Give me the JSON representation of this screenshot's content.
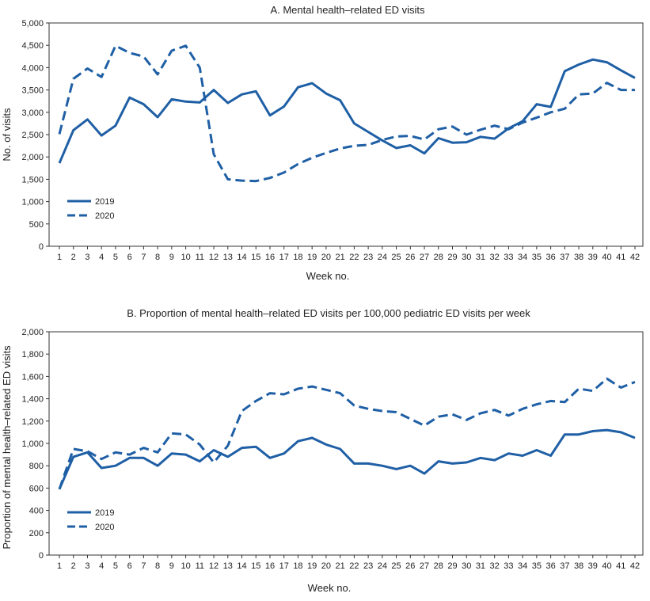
{
  "chart_data": [
    {
      "type": "line",
      "title": "A. Mental health–related ED visits",
      "xlabel": "Week no.",
      "ylabel": "No. of visits",
      "ylim": [
        0,
        5000
      ],
      "yticks": [
        0,
        500,
        1000,
        1500,
        2000,
        2500,
        3000,
        3500,
        4000,
        4500,
        5000
      ],
      "ytick_labels": [
        "0",
        "500",
        "1,000",
        "1,500",
        "2,000",
        "2,500",
        "3,000",
        "3,500",
        "4,000",
        "4,500",
        "5,000"
      ],
      "x": [
        1,
        2,
        3,
        4,
        5,
        6,
        7,
        8,
        9,
        10,
        11,
        12,
        13,
        14,
        15,
        16,
        17,
        18,
        19,
        20,
        21,
        22,
        23,
        24,
        25,
        26,
        27,
        28,
        29,
        30,
        31,
        32,
        33,
        34,
        35,
        36,
        37,
        38,
        39,
        40,
        41,
        42
      ],
      "xtick_labels": [
        "1",
        "2",
        "3",
        "4",
        "5",
        "6",
        "7",
        "8",
        "9",
        "10",
        "11",
        "12",
        "13",
        "14",
        "15",
        "16",
        "17",
        "18",
        "19",
        "20",
        "21",
        "22",
        "23",
        "24",
        "25",
        "26",
        "27",
        "28",
        "29",
        "30",
        "31",
        "32",
        "33",
        "34",
        "35",
        "36",
        "37",
        "38",
        "39",
        "40",
        "41",
        "42"
      ],
      "grid": false,
      "legend_position": "bottom-left",
      "series": [
        {
          "name": "2019",
          "style": "solid",
          "color": "#1f5fa5",
          "values": [
            1860,
            2600,
            2840,
            2480,
            2700,
            3330,
            3180,
            2890,
            3290,
            3240,
            3220,
            3500,
            3210,
            3400,
            3470,
            2930,
            3130,
            3560,
            3650,
            3420,
            3270,
            2750,
            2560,
            2370,
            2200,
            2260,
            2080,
            2420,
            2320,
            2330,
            2450,
            2410,
            2640,
            2800,
            3180,
            3120,
            3920,
            4070,
            4180,
            4120,
            3940,
            3770
          ]
        },
        {
          "name": "2020",
          "style": "dashed",
          "color": "#1f5fa5",
          "values": [
            2510,
            3750,
            3980,
            3790,
            4490,
            4330,
            4250,
            3850,
            4380,
            4490,
            4000,
            2060,
            1500,
            1470,
            1460,
            1530,
            1650,
            1840,
            1980,
            2090,
            2190,
            2250,
            2270,
            2380,
            2460,
            2470,
            2390,
            2620,
            2680,
            2500,
            2610,
            2700,
            2620,
            2770,
            2880,
            3000,
            3080,
            3400,
            3420,
            3660,
            3500,
            3500
          ]
        }
      ]
    },
    {
      "type": "line",
      "title": "B. Proportion of mental health–related ED visits per 100,000 pediatric ED visits per week",
      "xlabel": "Week no.",
      "ylabel": "Proportion of mental health–related ED visits",
      "ylim": [
        0,
        2000
      ],
      "yticks": [
        0,
        200,
        400,
        600,
        800,
        1000,
        1200,
        1400,
        1600,
        1800,
        2000
      ],
      "ytick_labels": [
        "0",
        "200",
        "400",
        "600",
        "800",
        "1,000",
        "1,200",
        "1,400",
        "1,600",
        "1,800",
        "2,000"
      ],
      "x": [
        1,
        2,
        3,
        4,
        5,
        6,
        7,
        8,
        9,
        10,
        11,
        12,
        13,
        14,
        15,
        16,
        17,
        18,
        19,
        20,
        21,
        22,
        23,
        24,
        25,
        26,
        27,
        28,
        29,
        30,
        31,
        32,
        33,
        34,
        35,
        36,
        37,
        38,
        39,
        40,
        41,
        42
      ],
      "xtick_labels": [
        "1",
        "2",
        "3",
        "4",
        "5",
        "6",
        "7",
        "8",
        "9",
        "10",
        "11",
        "12",
        "13",
        "14",
        "15",
        "16",
        "17",
        "18",
        "19",
        "20",
        "21",
        "22",
        "23",
        "24",
        "25",
        "26",
        "27",
        "28",
        "29",
        "30",
        "31",
        "32",
        "33",
        "34",
        "35",
        "36",
        "37",
        "38",
        "39",
        "40",
        "41",
        "42"
      ],
      "grid": false,
      "legend_position": "bottom-left",
      "series": [
        {
          "name": "2019",
          "style": "solid",
          "color": "#1f5fa5",
          "values": [
            590,
            880,
            920,
            780,
            800,
            870,
            870,
            800,
            910,
            900,
            840,
            940,
            880,
            960,
            970,
            870,
            910,
            1020,
            1050,
            990,
            950,
            820,
            820,
            800,
            770,
            800,
            730,
            840,
            820,
            830,
            870,
            850,
            910,
            890,
            940,
            890,
            1080,
            1080,
            1110,
            1120,
            1100,
            1050
          ]
        },
        {
          "name": "2020",
          "style": "dashed",
          "color": "#1f5fa5",
          "values": [
            590,
            950,
            930,
            860,
            920,
            900,
            960,
            920,
            1090,
            1080,
            990,
            830,
            980,
            1290,
            1380,
            1450,
            1440,
            1490,
            1510,
            1480,
            1450,
            1340,
            1310,
            1290,
            1280,
            1220,
            1160,
            1240,
            1260,
            1210,
            1270,
            1300,
            1250,
            1310,
            1350,
            1380,
            1370,
            1490,
            1470,
            1580,
            1500,
            1550
          ]
        }
      ]
    }
  ]
}
